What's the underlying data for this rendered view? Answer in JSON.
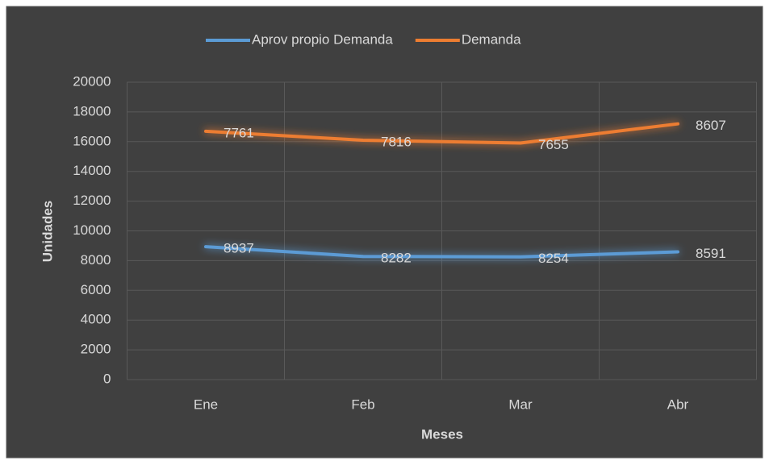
{
  "chart_data": {
    "type": "line",
    "stacked": true,
    "x_label": "Meses",
    "y_label": "Unidades",
    "categories": [
      "Ene",
      "Feb",
      "Mar",
      "Abr"
    ],
    "series": [
      {
        "name": "Aprov propio Demanda",
        "color": "#5b9bd5",
        "values": [
          8937,
          8282,
          8254,
          8591
        ]
      },
      {
        "name": "Demanda",
        "color": "#ed7d31",
        "values": [
          7761,
          7816,
          7655,
          8607
        ]
      }
    ],
    "ylim": [
      0,
      20000
    ],
    "yticks": [
      0,
      2000,
      4000,
      6000,
      8000,
      10000,
      12000,
      14000,
      16000,
      18000,
      20000
    ],
    "grid": true,
    "legend": "top"
  }
}
